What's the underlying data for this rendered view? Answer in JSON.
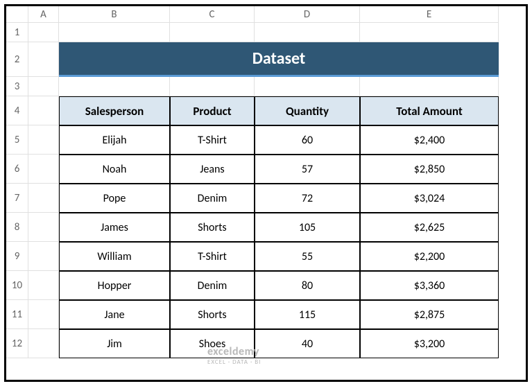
{
  "columns": [
    "A",
    "B",
    "C",
    "D",
    "E"
  ],
  "rows": [
    "1",
    "2",
    "3",
    "4",
    "5",
    "6",
    "7",
    "8",
    "9",
    "10",
    "11",
    "12"
  ],
  "title": "Dataset",
  "headers": {
    "salesperson": "Salesperson",
    "product": "Product",
    "quantity": "Quantity",
    "total": "Total Amount"
  },
  "data": [
    {
      "salesperson": "Elijah",
      "product": "T-Shirt",
      "quantity": "60",
      "total": "$2,400"
    },
    {
      "salesperson": "Noah",
      "product": "Jeans",
      "quantity": "57",
      "total": "$2,850"
    },
    {
      "salesperson": "Pope",
      "product": "Denim",
      "quantity": "72",
      "total": "$3,024"
    },
    {
      "salesperson": "James",
      "product": "Shorts",
      "quantity": "105",
      "total": "$2,625"
    },
    {
      "salesperson": "William",
      "product": "T-Shirt",
      "quantity": "55",
      "total": "$2,200"
    },
    {
      "salesperson": "Hopper",
      "product": "Denim",
      "quantity": "80",
      "total": "$3,360"
    },
    {
      "salesperson": "Jane",
      "product": "Shorts",
      "quantity": "115",
      "total": "$2,875"
    },
    {
      "salesperson": "Jim",
      "product": "Shoes",
      "quantity": "40",
      "total": "$3,200"
    }
  ],
  "watermark": {
    "brand": "exceldemy",
    "sub": "EXCEL · DATA · BI"
  },
  "colors": {
    "title_bg": "#2f5775",
    "title_underline": "#5b9bd5",
    "header_bg": "#dae6f0",
    "grid_line": "#e0e0e0",
    "border": "#000000"
  }
}
